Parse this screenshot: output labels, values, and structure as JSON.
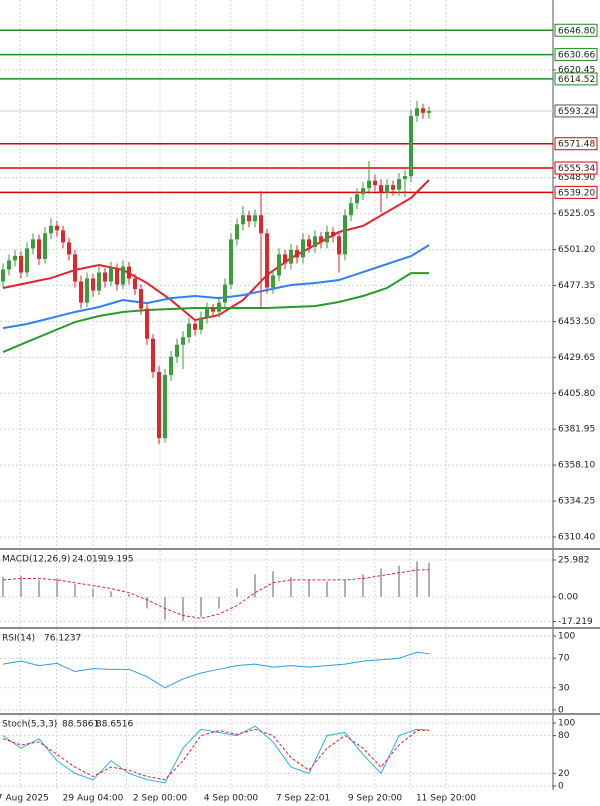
{
  "chart_data": [
    {
      "type": "candlestick",
      "up_color": "#3a9d3a",
      "down_color": "#e0262b",
      "ylim": [
        6303.1,
        6666.9
      ],
      "yticks": [
        6620.45,
        {
          "value": 6548.9,
          "label": "6548.90"
        },
        6525.05,
        {
          "value": 6501.2,
          "label": "6501.20"
        },
        6477.35,
        {
          "value": 6453.5,
          "label": "6453.50"
        },
        6429.65,
        {
          "value": 6405.8,
          "label": "6405.80"
        },
        6381.95,
        {
          "value": 6358.1,
          "label": "6358.10"
        },
        6334.25,
        {
          "value": 6310.4,
          "label": "6310.40"
        }
      ],
      "grid": true,
      "x_labels": [
        "27 Aug 2025",
        "29 Aug 04:00",
        "2 Sep 00:00",
        "4 Sep 00:00",
        "7 Sep 22:01",
        "9 Sep 20:00",
        "11 Sep 20:00"
      ],
      "candles": [
        [
          6480,
          6492,
          6476,
          6488
        ],
        [
          6488,
          6498,
          6484,
          6494
        ],
        [
          6494,
          6501,
          6490,
          6497
        ],
        [
          6497,
          6500,
          6482,
          6486
        ],
        [
          6486,
          6506,
          6483,
          6502
        ],
        [
          6502,
          6512,
          6498,
          6508
        ],
        [
          6508,
          6511,
          6491,
          6495
        ],
        [
          6495,
          6516,
          6492,
          6512
        ],
        [
          6512,
          6522,
          6508,
          6517
        ],
        [
          6517,
          6520,
          6510,
          6514
        ],
        [
          6514,
          6517,
          6502,
          6506
        ],
        [
          6506,
          6509,
          6494,
          6498
        ],
        [
          6498,
          6501,
          6476,
          6480
        ],
        [
          6480,
          6484,
          6462,
          6466
        ],
        [
          6466,
          6486,
          6463,
          6482
        ],
        [
          6482,
          6485,
          6470,
          6474
        ],
        [
          6474,
          6490,
          6471,
          6486
        ],
        [
          6486,
          6489,
          6476,
          6480
        ],
        [
          6480,
          6493,
          6477,
          6489
        ],
        [
          6489,
          6492,
          6474,
          6478
        ],
        [
          6478,
          6494,
          6475,
          6490
        ],
        [
          6490,
          6493,
          6478,
          6482
        ],
        [
          6482,
          6485,
          6471,
          6475
        ],
        [
          6475,
          6478,
          6458,
          6462
        ],
        [
          6462,
          6465,
          6438,
          6442
        ],
        [
          6442,
          6445,
          6416,
          6420
        ],
        [
          6420,
          6424,
          6372,
          6376
        ],
        [
          6376,
          6422,
          6373,
          6418
        ],
        [
          6418,
          6434,
          6414,
          6430
        ],
        [
          6430,
          6442,
          6426,
          6438
        ],
        [
          6438,
          6447,
          6422,
          6443
        ],
        [
          6443,
          6456,
          6439,
          6452
        ],
        [
          6452,
          6455,
          6444,
          6448
        ],
        [
          6448,
          6460,
          6445,
          6456
        ],
        [
          6456,
          6466,
          6452,
          6462
        ],
        [
          6462,
          6465,
          6456,
          6460
        ],
        [
          6460,
          6470,
          6456,
          6466
        ],
        [
          6466,
          6482,
          6462,
          6478
        ],
        [
          6478,
          6512,
          6475,
          6508
        ],
        [
          6508,
          6522,
          6504,
          6518
        ],
        [
          6518,
          6530,
          6514,
          6524
        ],
        [
          6524,
          6527,
          6516,
          6520
        ],
        [
          6520,
          6528,
          6516,
          6524
        ],
        [
          6524,
          6540,
          6462,
          6512
        ],
        [
          6512,
          6515,
          6472,
          6476
        ],
        [
          6476,
          6488,
          6472,
          6484
        ],
        [
          6484,
          6502,
          6480,
          6498
        ],
        [
          6498,
          6501,
          6488,
          6492
        ],
        [
          6492,
          6505,
          6488,
          6501
        ],
        [
          6501,
          6504,
          6492,
          6496
        ],
        [
          6496,
          6512,
          6492,
          6508
        ],
        [
          6508,
          6511,
          6499,
          6503
        ],
        [
          6503,
          6514,
          6499,
          6510
        ],
        [
          6510,
          6513,
          6502,
          6506
        ],
        [
          6506,
          6517,
          6502,
          6513
        ],
        [
          6513,
          6516,
          6506,
          6510
        ],
        [
          6510,
          6513,
          6486,
          6498
        ],
        [
          6498,
          6528,
          6494,
          6524
        ],
        [
          6524,
          6536,
          6520,
          6532
        ],
        [
          6532,
          6542,
          6528,
          6538
        ],
        [
          6538,
          6546,
          6534,
          6542
        ],
        [
          6542,
          6560,
          6538,
          6547
        ],
        [
          6547,
          6551,
          6540,
          6544
        ],
        [
          6544,
          6548,
          6526,
          6539
        ],
        [
          6539,
          6548,
          6535,
          6544
        ],
        [
          6544,
          6547,
          6537,
          6541
        ],
        [
          6541,
          6552,
          6537,
          6548
        ],
        [
          6548,
          6554,
          6536,
          6550
        ],
        [
          6550,
          6594,
          6546,
          6590
        ],
        [
          6590,
          6600,
          6586,
          6595
        ],
        [
          6595,
          6598,
          6588,
          6592
        ],
        [
          6592,
          6596,
          6588,
          6593.24
        ]
      ],
      "ma_x": [
        0,
        4,
        8,
        12,
        16,
        20,
        24,
        28,
        32,
        36,
        40,
        44,
        48,
        52,
        56,
        60,
        64,
        68,
        71
      ],
      "ma": [
        {
          "color": "#e8202a",
          "values": [
            6475.7,
            6479.0,
            6482.3,
            6487.7,
            6491.0,
            6487.7,
            6479.0,
            6467.7,
            6454.4,
            6457.8,
            6467.7,
            6484.3,
            6495.6,
            6504.2,
            6512.9,
            6516.9,
            6526.2,
            6535.5,
            6547.4
          ]
        },
        {
          "color": "#2f80ff",
          "values": [
            6449.1,
            6451.8,
            6455.8,
            6459.8,
            6463.1,
            6467.7,
            6465.7,
            6469.0,
            6470.4,
            6469.0,
            6471.0,
            6474.4,
            6477.7,
            6479.0,
            6481.0,
            6486.3,
            6491.6,
            6496.9,
            6504.2
          ]
        },
        {
          "color": "#2a9a2a",
          "values": [
            6433.2,
            6439.9,
            6446.5,
            6453.1,
            6457.1,
            6459.8,
            6461.1,
            6461.8,
            6462.4,
            6462.4,
            6462.4,
            6462.4,
            6463.1,
            6463.7,
            6466.4,
            6470.4,
            6475.7,
            6485.6,
            6485.6
          ]
        }
      ],
      "levels": [
        {
          "value": 6646.8,
          "label": "6646.80",
          "color": "#1e8c1e"
        },
        {
          "value": 6630.66,
          "color": "#1e8c1e"
        },
        {
          "value": 6614.52,
          "color": "#1e8c1e"
        },
        {
          "value": 6571.48,
          "color": "#e00000"
        },
        {
          "value": 6555.34,
          "color": "#e00000"
        },
        {
          "value": 6539.2,
          "label": "6539.20",
          "color": "#e00000"
        }
      ]
    },
    {
      "type": "histogram",
      "title": "MACD(12,26,9)",
      "ylim": [
        -21.07,
        33.0
      ],
      "yticks": [
        25.982,
        {
          "value": 0,
          "label": "0.00"
        },
        -17.219
      ],
      "x": [
        0,
        3,
        6,
        9,
        12,
        15,
        18,
        21,
        24,
        27,
        30,
        33,
        36,
        39,
        42,
        45,
        48,
        51,
        54,
        57,
        60,
        63,
        66,
        69,
        71
      ],
      "values": [
        14,
        15,
        12,
        13,
        9,
        6,
        4,
        2,
        -8,
        -16,
        -17,
        -14,
        -8,
        6,
        16,
        18,
        14,
        12,
        11,
        12,
        16,
        20,
        22,
        25,
        24.019
      ],
      "color": "#b0b0b0",
      "signal": [
        12,
        13,
        13,
        12,
        10,
        8,
        6,
        3,
        -2,
        -8,
        -13,
        -15,
        -12,
        -6,
        3,
        10,
        12,
        12,
        12,
        12,
        13,
        15,
        17,
        19,
        19.195
      ],
      "signal_color": "#e8202a"
    },
    {
      "type": "line",
      "title": "RSI(14)",
      "ylim": [
        -4.05,
        109.5
      ],
      "yticks": [
        100,
        70,
        30,
        0
      ],
      "x": [
        0,
        3,
        6,
        9,
        12,
        15,
        18,
        21,
        24,
        27,
        30,
        33,
        36,
        39,
        42,
        45,
        48,
        51,
        54,
        57,
        60,
        63,
        66,
        69,
        71
      ],
      "series": [
        {
          "color": "#2f9be8",
          "values": [
            62,
            66,
            60,
            63,
            52,
            56,
            55,
            55,
            45,
            30,
            42,
            50,
            55,
            60,
            62,
            58,
            60,
            58,
            60,
            62,
            66,
            68,
            70,
            78,
            76.1237
          ]
        }
      ]
    },
    {
      "type": "line",
      "title": "Stoch(5,3,3)",
      "ylim": [
        -6.35,
        112.7
      ],
      "yticks": [
        100,
        80,
        20,
        0
      ],
      "x": [
        0,
        3,
        6,
        9,
        12,
        15,
        18,
        21,
        24,
        27,
        30,
        33,
        36,
        39,
        42,
        45,
        48,
        51,
        54,
        57,
        60,
        63,
        66,
        69,
        71
      ],
      "series": [
        {
          "color": "#2fb0e8",
          "values": [
            80,
            60,
            75,
            40,
            20,
            10,
            40,
            20,
            10,
            5,
            60,
            90,
            85,
            80,
            95,
            70,
            30,
            20,
            80,
            85,
            50,
            20,
            80,
            90,
            88.5861
          ]
        },
        {
          "color": "#e8202a",
          "dashed": true,
          "values": [
            75,
            65,
            70,
            50,
            30,
            15,
            30,
            25,
            15,
            10,
            40,
            80,
            88,
            82,
            90,
            80,
            45,
            25,
            60,
            80,
            60,
            30,
            65,
            88,
            88.6516
          ]
        }
      ]
    }
  ]
}
